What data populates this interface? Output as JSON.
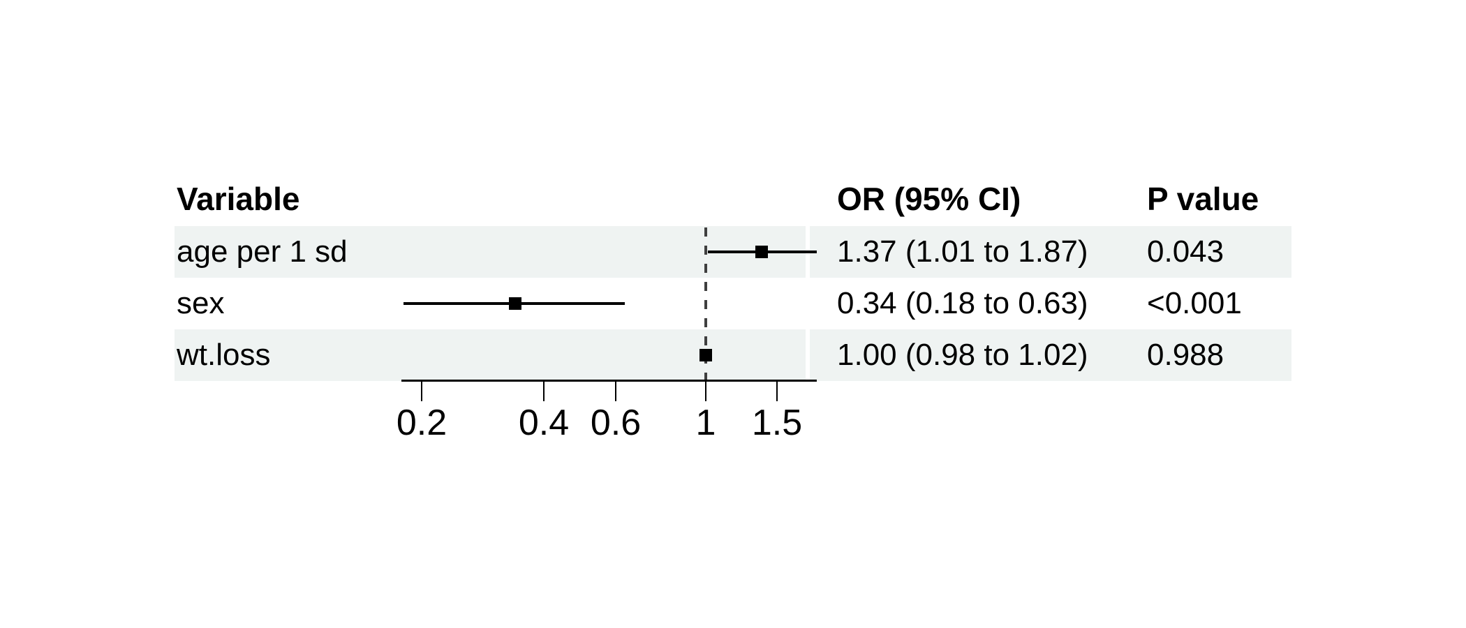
{
  "chart_data": {
    "type": "forest",
    "columns": {
      "variable": "Variable",
      "or_ci": "OR (95% CI)",
      "p": "P value"
    },
    "rows": [
      {
        "variable": "age per 1 sd",
        "or": 1.37,
        "ci_low": 1.01,
        "ci_high": 1.87,
        "or_ci_label": "1.37 (1.01 to 1.87)",
        "p_label": "0.043",
        "shaded": true
      },
      {
        "variable": "sex",
        "or": 0.34,
        "ci_low": 0.18,
        "ci_high": 0.63,
        "or_ci_label": "0.34 (0.18 to 0.63)",
        "p_label": "<0.001",
        "shaded": false
      },
      {
        "variable": "wt.loss",
        "or": 1.0,
        "ci_low": 0.98,
        "ci_high": 1.02,
        "or_ci_label": "1.00 (0.98 to 1.02)",
        "p_label": "0.988",
        "shaded": true
      }
    ],
    "x_axis": {
      "scale": "log10",
      "ticks": [
        0.2,
        0.4,
        0.6,
        1,
        1.5
      ],
      "tick_labels": [
        "0.2",
        "0.4",
        "0.6",
        "1",
        "1.5"
      ],
      "reference_line": 1
    },
    "colors": {
      "row_band": "#eff3f2",
      "data": "#000000",
      "reference_line": "#3f3f3f",
      "text": "#000000",
      "background": "#ffffff"
    }
  }
}
